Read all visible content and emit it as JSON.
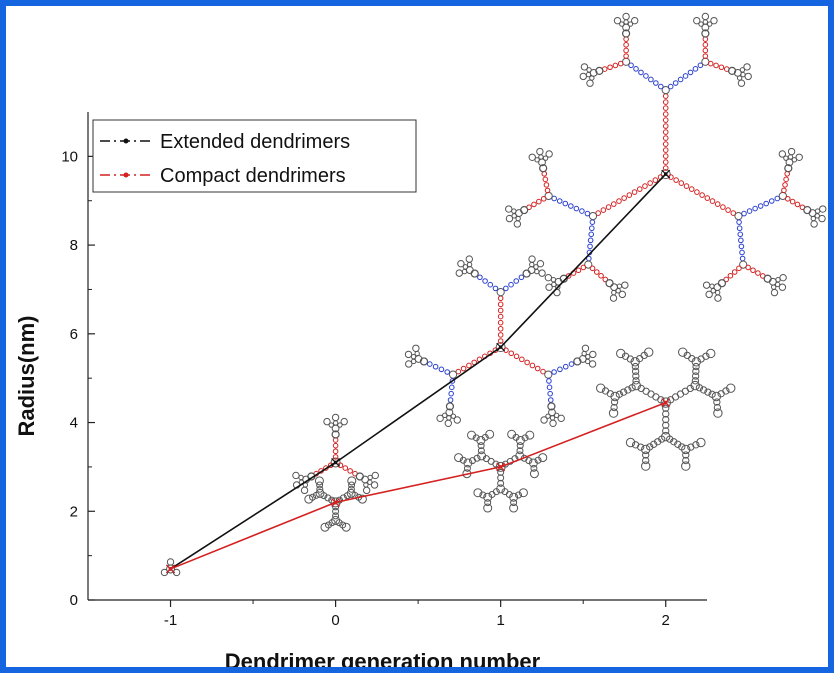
{
  "chart_data": {
    "type": "line",
    "title": "",
    "xlabel": "Dendrimer generation number",
    "ylabel": "Radius(nm)",
    "xlim": [
      -1.5,
      2.25
    ],
    "ylim": [
      0,
      11
    ],
    "x_ticks": [
      -1,
      0,
      1,
      2
    ],
    "y_ticks": [
      0,
      2,
      4,
      6,
      8,
      10
    ],
    "grid": false,
    "legend_position": "top-left",
    "x": [
      -1,
      0,
      1,
      2
    ],
    "series": [
      {
        "name": "Extended dendrimers",
        "values": [
          0.7,
          3.1,
          5.7,
          9.6
        ],
        "color": "#111111"
      },
      {
        "name": "Compact dendrimers",
        "values": [
          0.7,
          2.2,
          3.0,
          4.45
        ],
        "color": "#d42020"
      }
    ]
  },
  "colors": {
    "frame": "#1565e0",
    "node_dark": "#555555",
    "node_red": "#d42020",
    "node_blue": "#2a3fd0"
  }
}
